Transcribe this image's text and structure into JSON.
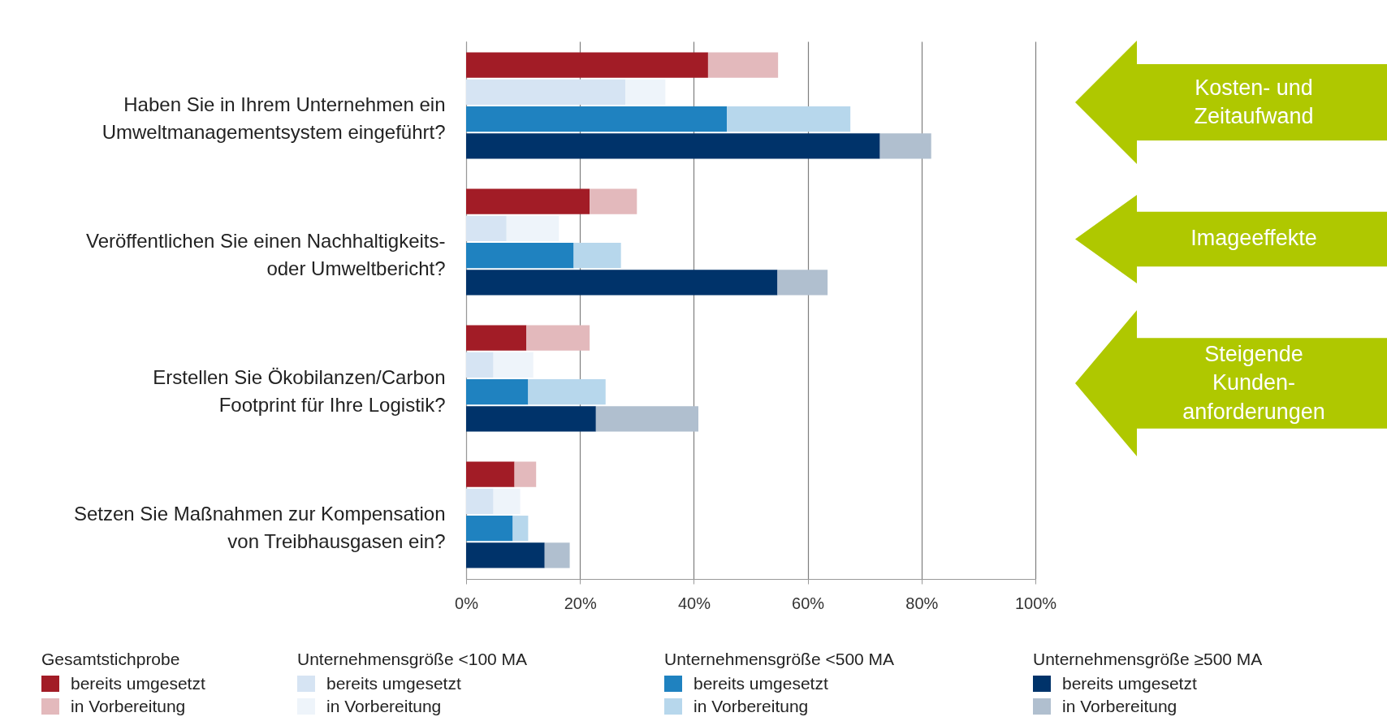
{
  "chart_data": [
    {
      "type": "bar",
      "orientation": "horizontal",
      "stacked": true,
      "categories": [
        "Haben Sie in Ihrem Unternehmen ein\nUmweltmanagementsystem eingeführt?",
        "Veröffentlichen Sie einen Nachhaltigkeits-\noder Umweltbericht?",
        "Erstellen Sie Ökobilanzen/Carbon\nFootprint für Ihre Logistik?",
        "Setzen Sie Maßnahmen zur Kompensation\nvon Treibhausgasen ein?"
      ],
      "legend_title": "Gesamtstichprobe",
      "series": [
        {
          "name": "bereits umgesetzt",
          "color": "#a21c26",
          "values": [
            42.5,
            21.7,
            10.6,
            8.5
          ]
        },
        {
          "name": "in Vorbereitung",
          "color": "#e3b9bc",
          "values": [
            12.3,
            8.3,
            11.1,
            3.8
          ]
        }
      ],
      "xlim": [
        0,
        100
      ],
      "xticks": [
        {
          "value": 0,
          "label": "0%"
        },
        {
          "value": 20,
          "label": "20%"
        },
        {
          "value": 40,
          "label": "40%"
        },
        {
          "value": 60,
          "label": "60%"
        },
        {
          "value": 80,
          "label": "80%"
        },
        {
          "value": 100,
          "label": "100%"
        }
      ],
      "grid": "x",
      "legend": "bottom",
      "annotations": [
        "Kosten- und Zeitaufwand",
        "Imageeffekte",
        "Steigende Kunden-anforderungen"
      ]
    },
    {
      "type": "bar",
      "orientation": "horizontal",
      "stacked": true,
      "categories": [
        null,
        null,
        null,
        null
      ],
      "legend_title": "Unternehmensgröße <100 MA",
      "series": [
        {
          "name": "bereits umgesetzt",
          "color": "#d6e4f3",
          "values": [
            28,
            7.1,
            4.8,
            4.8
          ]
        },
        {
          "name": "in Vorbereitung",
          "color": "#eef4fa",
          "values": [
            7,
            9.2,
            7,
            4.7
          ]
        }
      ],
      "xlim": [
        0,
        100
      ],
      "tick_labels": false,
      "legend": "bottom"
    },
    {
      "type": "bar",
      "orientation": "horizontal",
      "stacked": true,
      "categories": [
        null,
        null,
        null,
        null
      ],
      "legend_title": "Unternehmensgröße <500 MA",
      "series": [
        {
          "name": "bereits umgesetzt",
          "color": "#1f82c0",
          "values": [
            45.8,
            18.9,
            10.9,
            8.2
          ]
        },
        {
          "name": "in Vorbereitung",
          "color": "#b7d7ec",
          "values": [
            21.7,
            8.3,
            13.6,
            2.7
          ]
        }
      ],
      "xlim": [
        0,
        100
      ],
      "tick_labels": false,
      "legend": "bottom"
    },
    {
      "type": "bar",
      "orientation": "horizontal",
      "stacked": true,
      "categories": [
        null,
        null,
        null,
        null
      ],
      "legend_title": "Unternehmensgröße ≥500 MA",
      "series": [
        {
          "name": "bereits umgesetzt",
          "color": "#00336a",
          "values": [
            72.7,
            54.7,
            22.8,
            13.8
          ]
        },
        {
          "name": "in Vorbereitung",
          "color": "#b0bfcf",
          "values": [
            9,
            8.8,
            18,
            4.4
          ]
        }
      ],
      "xlim": [
        0,
        100
      ],
      "tick_labels": false,
      "legend": "bottom"
    }
  ]
}
